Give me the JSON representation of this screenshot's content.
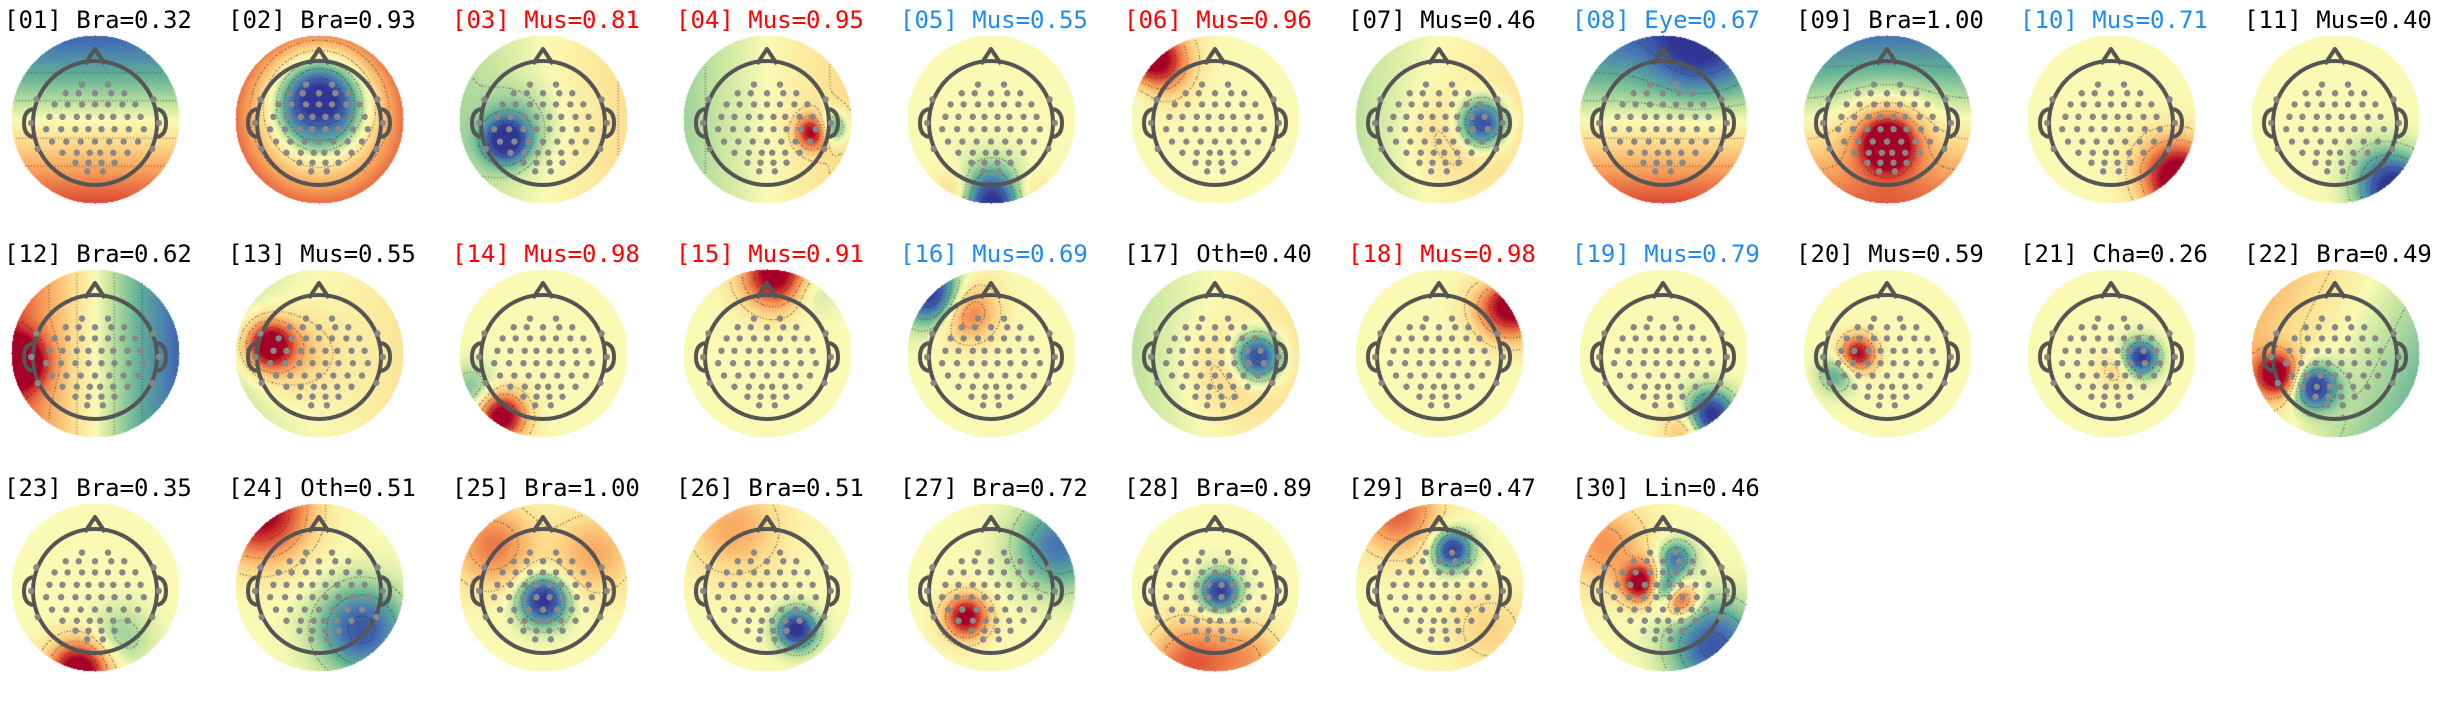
{
  "colors": {
    "black": "#000000",
    "red": "#ff0000",
    "blue": "#1e8cf0",
    "head": "#555555",
    "electrode": "#888888"
  },
  "components": [
    {
      "label": "[01] Bra=0.32",
      "color": "black",
      "map": "top-green-bottom-red"
    },
    {
      "label": "[02] Bra=0.93",
      "color": "black",
      "map": "center-blue-ring-red"
    },
    {
      "label": "[03] Mus=0.81",
      "color": "red",
      "map": "left-blue-spot"
    },
    {
      "label": "[04] Mus=0.95",
      "color": "red",
      "map": "right-red-spot"
    },
    {
      "label": "[05] Mus=0.55",
      "color": "blue",
      "map": "bottom-blue"
    },
    {
      "label": "[06] Mus=0.96",
      "color": "red",
      "map": "top-left-red"
    },
    {
      "label": "[07] Mus=0.46",
      "color": "black",
      "map": "right-blue-spot"
    },
    {
      "label": "[08] Eye=0.67",
      "color": "blue",
      "map": "front-green-back-orange"
    },
    {
      "label": "[09] Bra=1.00",
      "color": "black",
      "map": "center-red-spot-green-top"
    },
    {
      "label": "[10] Mus=0.71",
      "color": "blue",
      "map": "bottom-right-red"
    },
    {
      "label": "[11] Mus=0.40",
      "color": "black",
      "map": "bottom-right-blue"
    },
    {
      "label": "[12] Bra=0.62",
      "color": "black",
      "map": "left-red-right-green"
    },
    {
      "label": "[13] Mus=0.55",
      "color": "black",
      "map": "left-red-spot"
    },
    {
      "label": "[14] Mus=0.98",
      "color": "red",
      "map": "bottom-left-red-spot"
    },
    {
      "label": "[15] Mus=0.91",
      "color": "red",
      "map": "top-red"
    },
    {
      "label": "[16] Mus=0.69",
      "color": "blue",
      "map": "top-left-blue"
    },
    {
      "label": "[17] Oth=0.40",
      "color": "black",
      "map": "right-blue-spot"
    },
    {
      "label": "[18] Mus=0.98",
      "color": "red",
      "map": "top-right-red"
    },
    {
      "label": "[19] Mus=0.79",
      "color": "blue",
      "map": "bottom-right-blue-spot"
    },
    {
      "label": "[20] Mus=0.59",
      "color": "black",
      "map": "left-red-spot-small"
    },
    {
      "label": "[21] Cha=0.26",
      "color": "black",
      "map": "center-right-blue-spot"
    },
    {
      "label": "[22] Bra=0.49",
      "color": "black",
      "map": "left-red-blue-dipole"
    },
    {
      "label": "[23] Bra=0.35",
      "color": "black",
      "map": "bottom-red"
    },
    {
      "label": "[24] Oth=0.51",
      "color": "black",
      "map": "top-left-red-right-green"
    },
    {
      "label": "[25] Bra=1.00",
      "color": "black",
      "map": "center-blue-spot-orange"
    },
    {
      "label": "[26] Bra=0.51",
      "color": "black",
      "map": "bottom-right-blue-spot-small"
    },
    {
      "label": "[27] Bra=0.72",
      "color": "black",
      "map": "left-red-spot-green-right"
    },
    {
      "label": "[28] Bra=0.89",
      "color": "black",
      "map": "center-blue-spot-orange-bottom"
    },
    {
      "label": "[29] Bra=0.47",
      "color": "black",
      "map": "top-blue-spot"
    },
    {
      "label": "[30] Lin=0.46",
      "color": "black",
      "map": "center-red-blue-dipoles"
    }
  ]
}
